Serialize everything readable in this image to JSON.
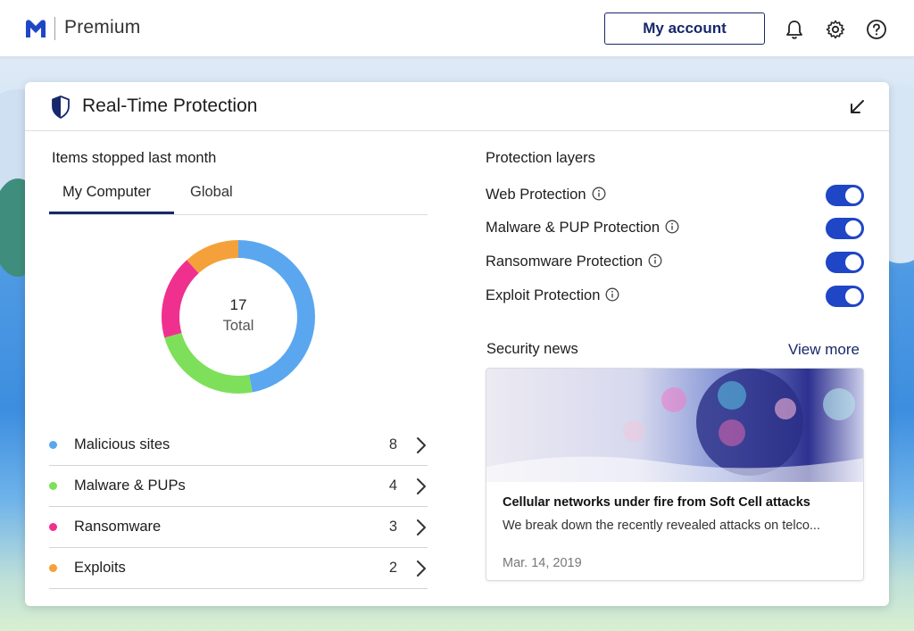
{
  "header": {
    "brand": "Premium",
    "account_button": "My account"
  },
  "card": {
    "title": "Real-Time Protection"
  },
  "items_stopped": {
    "heading": "Items stopped last month",
    "tabs": [
      {
        "label": "My Computer",
        "active": true
      },
      {
        "label": "Global",
        "active": false
      }
    ],
    "total_value": "17",
    "total_label": "Total",
    "categories": [
      {
        "name": "Malicious sites",
        "count": "8",
        "color": "#5aa7ef"
      },
      {
        "name": "Malware & PUPs",
        "count": "4",
        "color": "#7ee05a"
      },
      {
        "name": "Ransomware",
        "count": "3",
        "color": "#f0308f"
      },
      {
        "name": "Exploits",
        "count": "2",
        "color": "#f5a13b"
      }
    ]
  },
  "protection_layers": {
    "heading": "Protection layers",
    "layers": [
      {
        "name": "Web Protection",
        "enabled": true
      },
      {
        "name": "Malware & PUP Protection",
        "enabled": true
      },
      {
        "name": "Ransomware Protection",
        "enabled": true
      },
      {
        "name": "Exploit Protection",
        "enabled": true
      }
    ]
  },
  "news": {
    "heading": "Security news",
    "view_more": "View more",
    "article": {
      "title": "Cellular networks under fire from Soft Cell attacks",
      "description": "We break down the recently revealed attacks on telco...",
      "date": "Mar. 14, 2019"
    }
  },
  "colors": {
    "accent": "#16286b",
    "toggle_on": "#1f46c6"
  }
}
